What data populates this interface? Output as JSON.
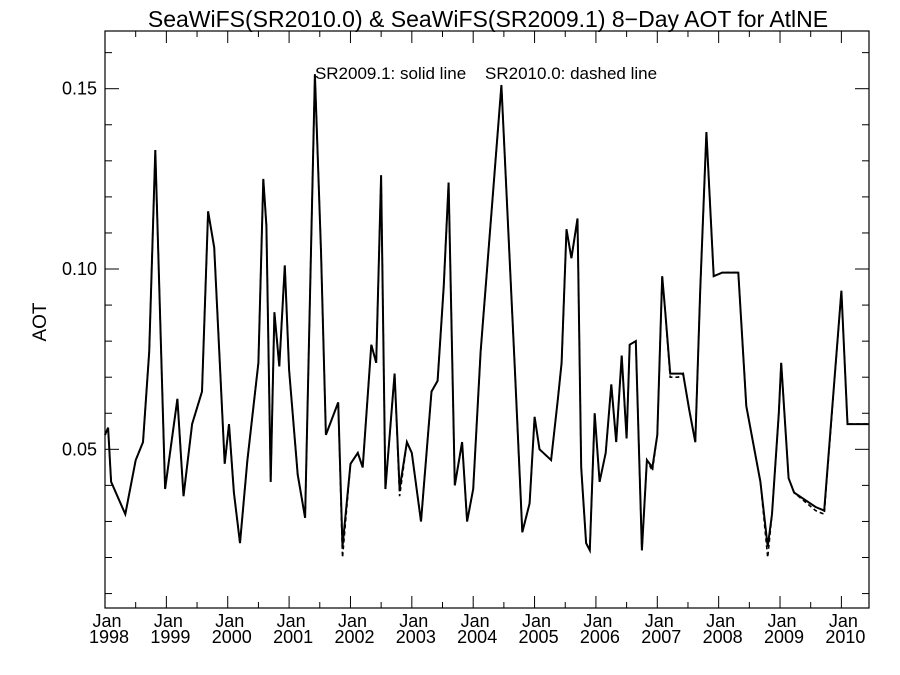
{
  "chart_data": {
    "type": "line",
    "title": "SeaWiFS(SR2010.0) & SeaWiFS(SR2009.1) 8−Day AOT for AtlNE",
    "annotation": "SR2009.1: solid line    SR2010.0: dashed line",
    "ylabel": "AOT",
    "xlabel": "",
    "xlim": [
      1998.0,
      2010.45
    ],
    "ylim": [
      0.006,
      0.166
    ],
    "yticks": [
      0.05,
      0.1,
      0.15
    ],
    "ytick_labels": [
      "0.05",
      "0.10",
      "0.15"
    ],
    "xticks": [
      1998,
      1999,
      2000,
      2001,
      2002,
      2003,
      2004,
      2005,
      2006,
      2007,
      2008,
      2009,
      2010
    ],
    "xtick_month_labels": [
      "Jan",
      "Jan",
      "Jan",
      "Jan",
      "Jan",
      "Jan",
      "Jan",
      "Jan",
      "Jan",
      "Jan",
      "Jan",
      "Jan",
      "Jan"
    ],
    "xtick_year_labels": [
      "1998",
      "1999",
      "2000",
      "2001",
      "2002",
      "2003",
      "2004",
      "2005",
      "2006",
      "2007",
      "2008",
      "2009",
      "2010"
    ],
    "grid": false,
    "series": [
      {
        "name": "SR2009.1",
        "style": "solid",
        "color": "#000000",
        "x": [
          1998.0,
          1998.05,
          1998.1,
          1998.33,
          1998.5,
          1998.62,
          1998.72,
          1998.82,
          1998.98,
          1999.18,
          1999.28,
          1999.42,
          1999.58,
          1999.68,
          1999.78,
          1999.95,
          2000.02,
          2000.1,
          2000.2,
          2000.32,
          2000.42,
          2000.5,
          2000.58,
          2000.63,
          2000.7,
          2000.76,
          2000.84,
          2000.93,
          2001.0,
          2001.14,
          2001.26,
          2001.42,
          2001.52,
          2001.6,
          2001.8,
          2001.87,
          2002.0,
          2002.12,
          2002.2,
          2002.34,
          2002.42,
          2002.5,
          2002.57,
          2002.72,
          2002.8,
          2002.92,
          2003.0,
          2003.15,
          2003.32,
          2003.42,
          2003.52,
          2003.6,
          2003.7,
          2003.82,
          2003.9,
          2004.0,
          2004.12,
          2004.46,
          2004.68,
          2004.8,
          2004.92,
          2005.0,
          2005.08,
          2005.27,
          2005.38,
          2005.44,
          2005.52,
          2005.6,
          2005.7,
          2005.76,
          2005.84,
          2005.9,
          2005.98,
          2006.06,
          2006.16,
          2006.25,
          2006.33,
          2006.42,
          2006.5,
          2006.55,
          2006.65,
          2006.75,
          2006.83,
          2006.92,
          2007.0,
          2007.08,
          2007.13,
          2007.21,
          2007.34,
          2007.42,
          2007.52,
          2007.62,
          2007.7,
          2007.8,
          2007.92,
          2008.06,
          2008.32,
          2008.45,
          2008.68,
          2008.8,
          2008.87,
          2008.98,
          2009.02,
          2009.14,
          2009.23,
          2009.58,
          2009.72,
          2010.0,
          2010.1,
          2010.18,
          2010.32,
          2010.45
        ],
        "y": [
          0.054,
          0.056,
          0.041,
          0.032,
          0.047,
          0.052,
          0.077,
          0.133,
          0.039,
          0.064,
          0.037,
          0.057,
          0.066,
          0.116,
          0.106,
          0.046,
          0.057,
          0.038,
          0.024,
          0.047,
          0.062,
          0.074,
          0.125,
          0.112,
          0.041,
          0.088,
          0.073,
          0.101,
          0.072,
          0.043,
          0.031,
          0.154,
          0.105,
          0.054,
          0.063,
          0.023,
          0.046,
          0.049,
          0.045,
          0.079,
          0.074,
          0.126,
          0.039,
          0.071,
          0.039,
          0.052,
          0.049,
          0.03,
          0.066,
          0.069,
          0.095,
          0.124,
          0.04,
          0.052,
          0.03,
          0.039,
          0.077,
          0.151,
          0.072,
          0.027,
          0.035,
          0.059,
          0.05,
          0.047,
          0.064,
          0.074,
          0.111,
          0.103,
          0.114,
          0.045,
          0.024,
          0.022,
          0.06,
          0.041,
          0.049,
          0.068,
          0.052,
          0.076,
          0.053,
          0.079,
          0.08,
          0.022,
          0.047,
          0.045,
          0.054,
          0.098,
          0.088,
          0.071,
          0.071,
          0.071,
          0.061,
          0.052,
          0.094,
          0.138,
          0.098,
          0.099,
          0.099,
          0.062,
          0.041,
          0.023,
          0.032,
          0.06,
          0.074,
          0.042,
          0.038,
          0.034,
          0.033,
          0.094,
          0.057,
          0.057,
          0.057,
          0.057
        ]
      },
      {
        "name": "SR2010.0",
        "style": "dashed",
        "color": "#000000",
        "x": [
          1998.0,
          1998.05,
          1998.1,
          1998.33,
          1998.5,
          1998.62,
          1998.72,
          1998.82,
          1998.98,
          1999.18,
          1999.28,
          1999.42,
          1999.58,
          1999.68,
          1999.78,
          1999.95,
          2000.02,
          2000.1,
          2000.2,
          2000.32,
          2000.42,
          2000.5,
          2000.58,
          2000.63,
          2000.7,
          2000.76,
          2000.84,
          2000.93,
          2001.0,
          2001.14,
          2001.26,
          2001.42,
          2001.52,
          2001.6,
          2001.8,
          2001.87,
          2002.0,
          2002.12,
          2002.2,
          2002.34,
          2002.42,
          2002.5,
          2002.57,
          2002.72,
          2002.8,
          2002.92,
          2003.0,
          2003.15,
          2003.32,
          2003.42,
          2003.52,
          2003.6,
          2003.7,
          2003.82,
          2003.9,
          2004.0,
          2004.12,
          2004.46,
          2004.68,
          2004.8,
          2004.92,
          2005.0,
          2005.08,
          2005.27,
          2005.38,
          2005.44,
          2005.52,
          2005.6,
          2005.7,
          2005.76,
          2005.84,
          2005.9,
          2005.98,
          2006.06,
          2006.16,
          2006.25,
          2006.33,
          2006.42,
          2006.5,
          2006.55,
          2006.65,
          2006.75,
          2006.83,
          2006.92,
          2007.0,
          2007.08,
          2007.13,
          2007.21,
          2007.34,
          2007.42,
          2007.52,
          2007.62,
          2007.7,
          2007.8,
          2007.92,
          2008.06,
          2008.32,
          2008.45,
          2008.68,
          2008.8,
          2008.87,
          2008.98,
          2009.02,
          2009.14,
          2009.23,
          2009.58,
          2009.72,
          2010.0,
          2010.1,
          2010.18,
          2010.32,
          2010.45
        ],
        "y": [
          0.054,
          0.056,
          0.041,
          0.032,
          0.047,
          0.052,
          0.077,
          0.133,
          0.039,
          0.064,
          0.037,
          0.057,
          0.066,
          0.116,
          0.106,
          0.046,
          0.057,
          0.038,
          0.024,
          0.047,
          0.062,
          0.074,
          0.125,
          0.112,
          0.041,
          0.088,
          0.073,
          0.101,
          0.072,
          0.043,
          0.031,
          0.154,
          0.105,
          0.054,
          0.063,
          0.02,
          0.046,
          0.049,
          0.045,
          0.079,
          0.074,
          0.126,
          0.039,
          0.071,
          0.037,
          0.052,
          0.049,
          0.03,
          0.066,
          0.069,
          0.095,
          0.124,
          0.04,
          0.052,
          0.03,
          0.039,
          0.077,
          0.151,
          0.072,
          0.027,
          0.035,
          0.059,
          0.05,
          0.047,
          0.064,
          0.074,
          0.111,
          0.103,
          0.114,
          0.045,
          0.024,
          0.022,
          0.06,
          0.041,
          0.049,
          0.068,
          0.052,
          0.076,
          0.053,
          0.079,
          0.08,
          0.022,
          0.047,
          0.044,
          0.054,
          0.098,
          0.088,
          0.07,
          0.07,
          0.071,
          0.061,
          0.052,
          0.094,
          0.138,
          0.098,
          0.099,
          0.099,
          0.062,
          0.041,
          0.02,
          0.032,
          0.06,
          0.074,
          0.042,
          0.038,
          0.033,
          0.032,
          0.094,
          0.057,
          0.057,
          0.057,
          0.057
        ]
      }
    ]
  }
}
